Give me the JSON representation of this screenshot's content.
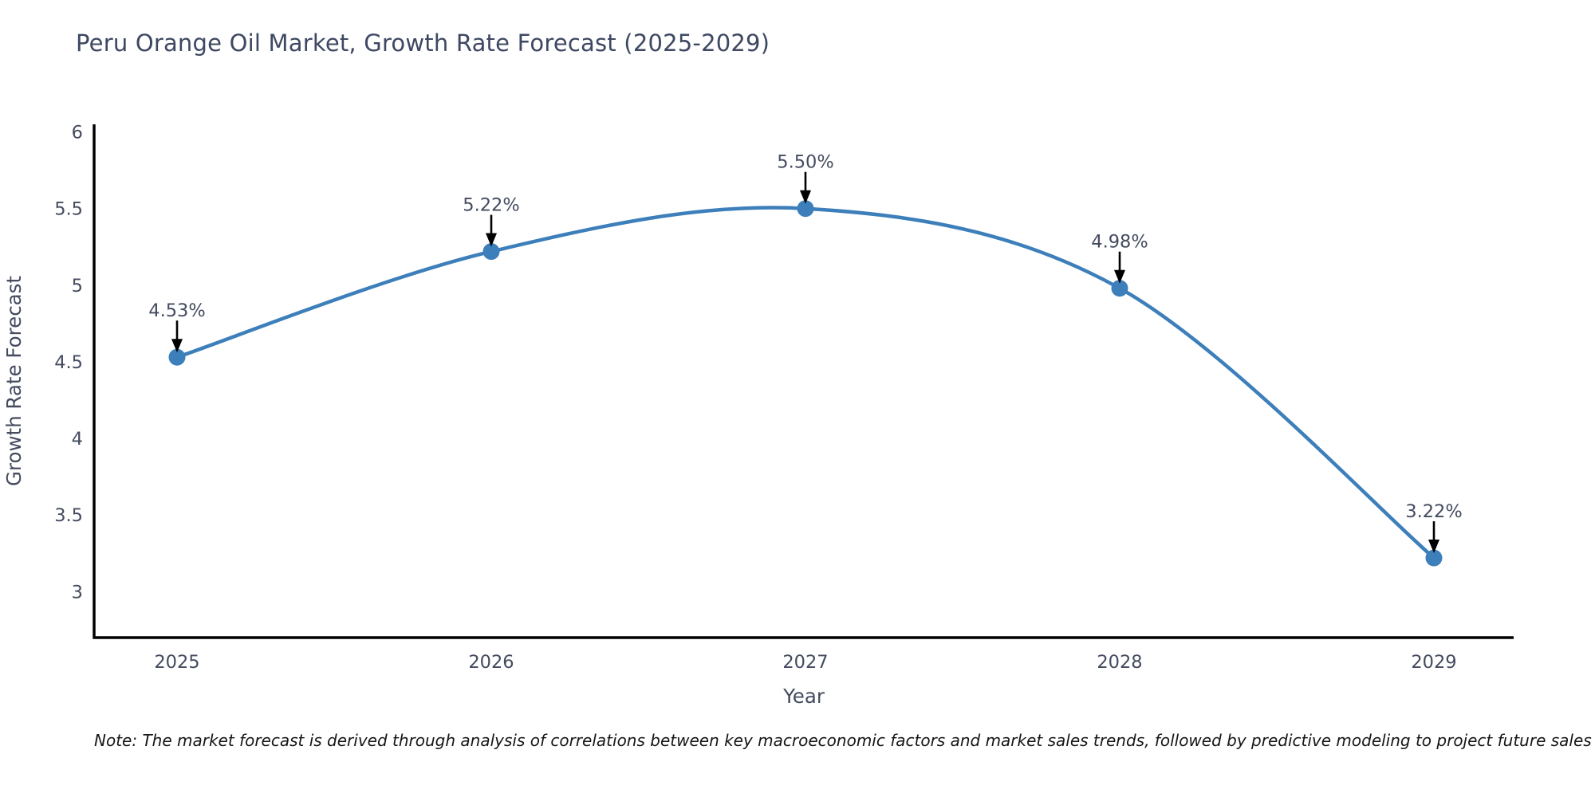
{
  "chart_data": {
    "type": "line",
    "title": "Peru Orange Oil Market, Growth Rate Forecast (2025-2029)",
    "x": [
      "2025",
      "2026",
      "2027",
      "2028",
      "2029"
    ],
    "values": [
      4.53,
      5.22,
      5.5,
      4.98,
      3.22
    ],
    "point_labels": [
      "4.53%",
      "5.22%",
      "5.50%",
      "4.98%",
      "3.22%"
    ],
    "xlabel": "Year",
    "ylabel": "Growth Rate Forecast",
    "yticks": [
      6,
      5.5,
      5,
      4.5,
      4,
      3.5,
      3
    ],
    "ylim": [
      2.7,
      6.05
    ],
    "line_shape": "spline",
    "grid": false,
    "legend": "none",
    "colors": {
      "line": "#3d7fba",
      "marker": "#3d7fba",
      "arrow": "#000000",
      "axis": "#000000",
      "text": "#444b5f"
    }
  },
  "note": "Note: The market forecast is derived through analysis of correlations between key macroeconomic factors and market sales trends, followed by predictive modeling to project future sales"
}
